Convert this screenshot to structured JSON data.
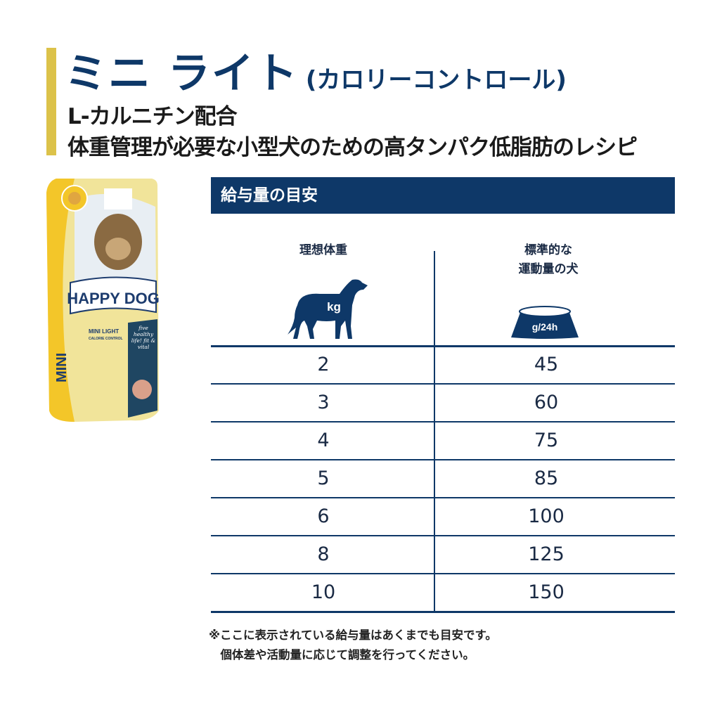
{
  "title": {
    "main": "ミニ ライト",
    "paren": "(カロリーコントロール)"
  },
  "subtitle": [
    "L-カルニチン配合",
    "体重管理が必要な小型犬のための高タンパク低脂肪のレシピ"
  ],
  "product": {
    "brand": "HAPPY DOG",
    "name": "MINI LIGHT",
    "variant": "CALORIE CONTROL",
    "side_label": "MINI",
    "badge": "five healthy life! fit & vital"
  },
  "feeding": {
    "header": "給与量の目安",
    "col_weight": "理想体重",
    "col_amount_1": "標準的な",
    "col_amount_2": "運動量の犬",
    "weight_unit": "kg",
    "amount_unit": "g/24h",
    "rows": [
      {
        "weight": "2",
        "amount": "45"
      },
      {
        "weight": "3",
        "amount": "60"
      },
      {
        "weight": "4",
        "amount": "75"
      },
      {
        "weight": "5",
        "amount": "85"
      },
      {
        "weight": "6",
        "amount": "100"
      },
      {
        "weight": "8",
        "amount": "125"
      },
      {
        "weight": "10",
        "amount": "150"
      }
    ]
  },
  "notes": [
    "※ここに表示されている給与量はあくまでも目安です。",
    "　個体差や活動量に応じて調整を行ってください。"
  ],
  "colors": {
    "navy": "#0e3868",
    "accent_yellow": "#dcc24a"
  }
}
